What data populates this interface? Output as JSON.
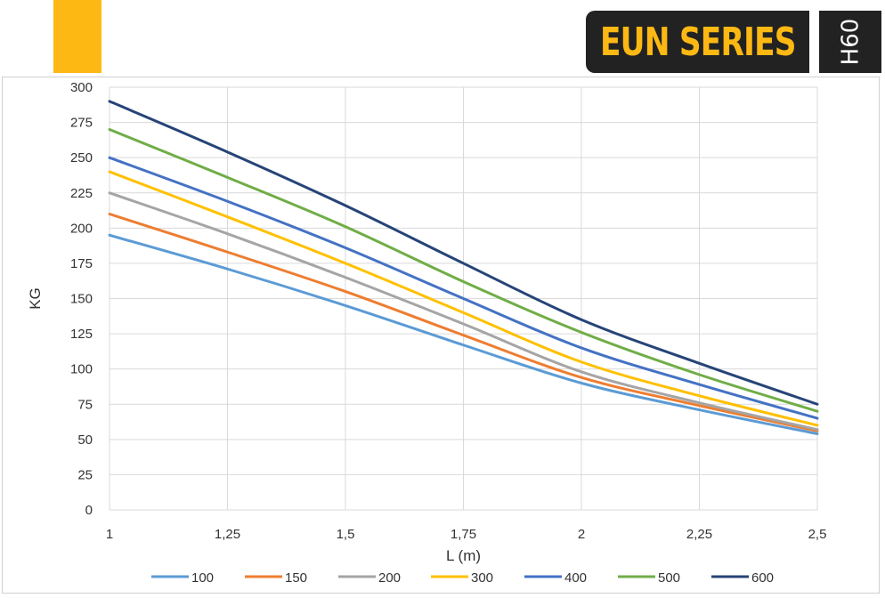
{
  "header": {
    "series_name": "EUN SERIES",
    "model_badge": "H60",
    "accent_color": "#FDB813"
  },
  "chart_data": {
    "type": "line",
    "title": "",
    "xlabel": "L (m)",
    "ylabel": "KG",
    "x": [
      1,
      1.25,
      1.5,
      1.75,
      2,
      2.25,
      2.5
    ],
    "x_tick_labels": [
      "1",
      "1,25",
      "1,5",
      "1,75",
      "2",
      "2,25",
      "2,5"
    ],
    "xlim": [
      1,
      2.5
    ],
    "ylim": [
      0,
      300
    ],
    "y_ticks": [
      0,
      25,
      50,
      75,
      100,
      125,
      150,
      175,
      200,
      225,
      250,
      275,
      300
    ],
    "grid": true,
    "legend_position": "bottom",
    "series": [
      {
        "name": "100",
        "color": "#5B9BD5",
        "values": [
          195,
          171,
          145,
          117,
          90,
          71,
          54
        ]
      },
      {
        "name": "150",
        "color": "#ED7D31",
        "values": [
          210,
          183,
          155,
          124,
          94,
          74,
          56
        ]
      },
      {
        "name": "200",
        "color": "#A5A5A5",
        "values": [
          225,
          196,
          165,
          132,
          98,
          76,
          57
        ]
      },
      {
        "name": "300",
        "color": "#FFC000",
        "values": [
          240,
          208,
          175,
          140,
          105,
          81,
          60
        ]
      },
      {
        "name": "400",
        "color": "#4472C4",
        "values": [
          250,
          219,
          186,
          150,
          115,
          89,
          65
        ]
      },
      {
        "name": "500",
        "color": "#70AD47",
        "values": [
          270,
          236,
          201,
          162,
          126,
          96,
          70
        ]
      },
      {
        "name": "600",
        "color": "#264478",
        "values": [
          290,
          254,
          216,
          175,
          135,
          104,
          75
        ]
      }
    ]
  }
}
